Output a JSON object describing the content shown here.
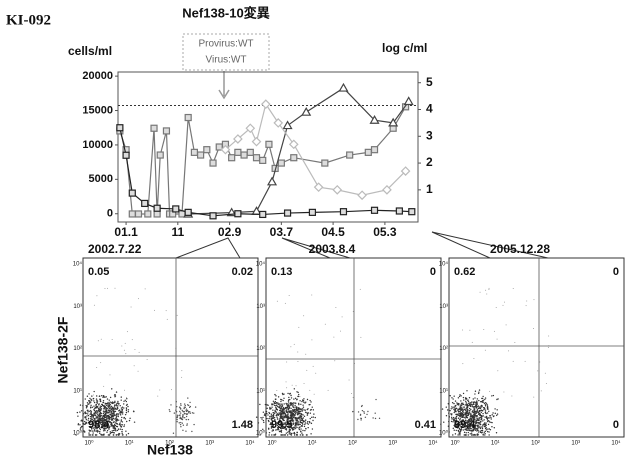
{
  "header": {
    "id": "KI-092"
  },
  "chart_data": {
    "type": "line",
    "title": "Nef138-10変異",
    "annotation": [
      "Provirus:WT",
      "Virus:WT"
    ],
    "ylabel": "cells/ml",
    "y2label": "log c/ml",
    "xlim": [
      2000.87,
      2005.7
    ],
    "xticks": [
      {
        "value": 2001.0,
        "label": "01.1"
      },
      {
        "value": 2001.833,
        "label": "11"
      },
      {
        "value": 2002.667,
        "label": "02.9"
      },
      {
        "value": 2003.5,
        "label": "03.7"
      },
      {
        "value": 2004.333,
        "label": "04.5"
      },
      {
        "value": 2005.167,
        "label": "05.3"
      }
    ],
    "ylim": [
      -1200,
      20600
    ],
    "yticks": [
      0,
      5000,
      10000,
      15000,
      20000
    ],
    "y2lim": [
      -0.2,
      5.4
    ],
    "y2ticks": [
      1,
      2,
      3,
      4,
      5
    ],
    "ref_line": {
      "value": 4.15,
      "axis": "y2"
    },
    "series": [
      {
        "color": "#777777",
        "marker": "square",
        "axis": "y2",
        "x": [
          2000.9,
          2001.0,
          2001.1,
          2001.2,
          2001.35,
          2001.45,
          2001.5,
          2001.55,
          2001.65,
          2001.7,
          2001.75,
          2001.9,
          2002.0,
          2002.1,
          2002.2,
          2002.3,
          2002.4,
          2002.5,
          2002.6,
          2002.7,
          2002.8,
          2002.9,
          2003.0,
          2003.1,
          2003.2,
          2003.3,
          2003.4,
          2003.5,
          2003.7,
          2004.2,
          2004.6,
          2004.9,
          2005.0,
          2005.3,
          2005.5
        ],
        "values": [
          3.2,
          2.5,
          0.1,
          0.1,
          0.1,
          3.3,
          0.1,
          2.3,
          3.2,
          0.1,
          0.1,
          0.1,
          3.7,
          2.4,
          2.3,
          2.5,
          2.0,
          2.6,
          2.7,
          2.2,
          2.4,
          2.3,
          2.4,
          2.2,
          2.1,
          2.7,
          1.8,
          2.0,
          2.2,
          2.0,
          2.3,
          2.4,
          2.5,
          3.3,
          4.1
        ]
      },
      {
        "color": "#444444",
        "marker": "triangle",
        "axis": "y2",
        "x": [
          2002.0,
          2002.7,
          2003.1,
          2003.35,
          2003.6,
          2003.9,
          2004.5,
          2005.0,
          2005.3,
          2005.55
        ],
        "values": [
          0.1,
          0.15,
          0.2,
          1.3,
          3.4,
          3.9,
          4.8,
          3.6,
          3.5,
          4.3
        ]
      },
      {
        "color": "#bbbbbb",
        "marker": "diamond",
        "axis": "y2",
        "x": [
          2002.6,
          2002.8,
          2003.0,
          2003.1,
          2003.25,
          2003.45,
          2003.7,
          2004.1,
          2004.4,
          2004.8,
          2005.2,
          2005.5
        ],
        "values": [
          2.5,
          2.9,
          3.3,
          2.8,
          4.2,
          3.5,
          2.7,
          1.1,
          1.0,
          0.8,
          1.0,
          1.7
        ]
      },
      {
        "color": "#222222",
        "marker": "square",
        "axis": "y",
        "x": [
          2000.9,
          2001.0,
          2001.1,
          2001.3,
          2001.5,
          2001.8,
          2002.0,
          2002.4,
          2002.8,
          2003.2,
          2003.6,
          2004.0,
          2004.5,
          2005.0,
          2005.4,
          2005.6
        ],
        "values": [
          12500,
          8500,
          3000,
          1500,
          800,
          700,
          200,
          -300,
          0,
          -100,
          100,
          200,
          300,
          500,
          400,
          300
        ]
      }
    ]
  },
  "flow": {
    "ylabel": "Nef138-2F",
    "xlabel": "Nef138",
    "tick_labels": [
      "10⁰",
      "10¹",
      "10²",
      "10³",
      "10⁴"
    ],
    "panels": [
      {
        "date": "2002.7.22",
        "ul": "0.05",
        "ur": "0.02",
        "ll": "98.4",
        "lr": "1.48"
      },
      {
        "date": "2003.8.4",
        "ul": "0.13",
        "ur": "0",
        "ll": "99.5",
        "lr": "0.41"
      },
      {
        "date": "2005.12.28",
        "ul": "0.62",
        "ur": "0",
        "ll": "99.4",
        "lr": "0"
      }
    ]
  }
}
